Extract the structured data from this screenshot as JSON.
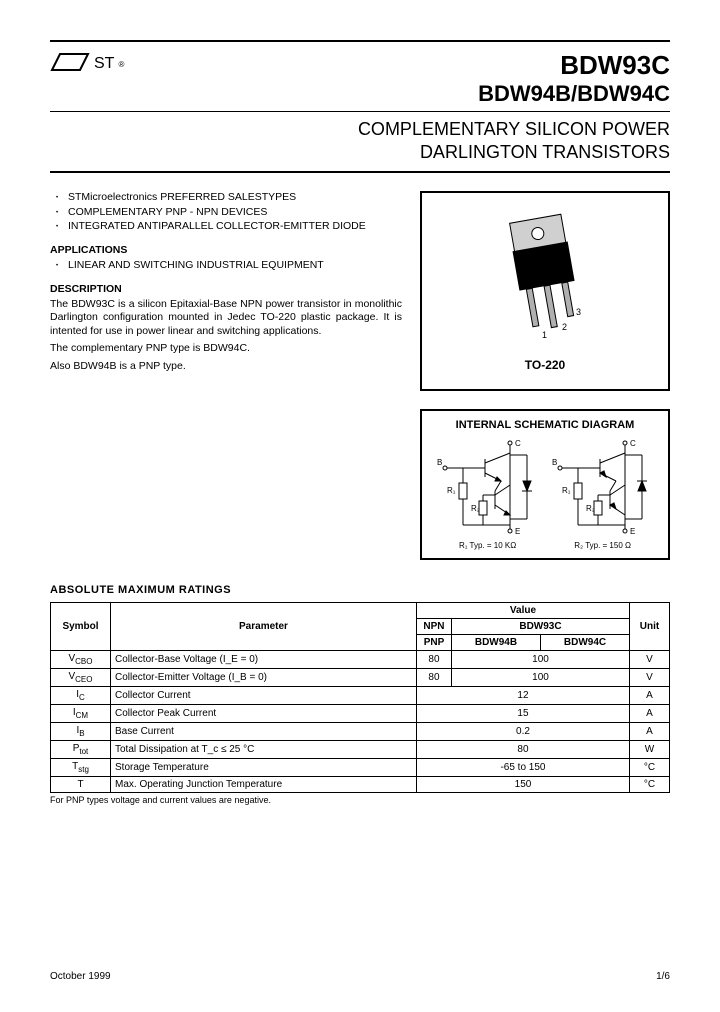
{
  "header": {
    "logo_text": "ST",
    "title_line1": "BDW93C",
    "title_line2": "BDW94B/BDW94C",
    "subtitle_line1": "COMPLEMENTARY SILICON POWER",
    "subtitle_line2": "DARLINGTON TRANSISTORS"
  },
  "features": [
    "STMicroelectronics PREFERRED SALESTYPES",
    "COMPLEMENTARY PNP - NPN DEVICES",
    "INTEGRATED ANTIPARALLEL COLLECTOR-EMITTER DIODE"
  ],
  "applications_head": "APPLICATIONS",
  "applications": [
    "LINEAR AND SWITCHING INDUSTRIAL EQUIPMENT"
  ],
  "description_head": "DESCRIPTION",
  "description_paras": [
    "The BDW93C is a silicon Epitaxial-Base NPN power transistor in monolithic Darlington configuration mounted in Jedec TO-220 plastic package. It is intented for use in power linear and switching applications.",
    "The complementary PNP type is BDW94C.",
    "Also BDW94B is a PNP type."
  ],
  "package": {
    "label": "TO-220",
    "pin1": "1",
    "pin2": "2",
    "pin3": "3",
    "body_color": "#000000",
    "tab_color": "#d0d0d0",
    "lead_color": "#b0b0b0"
  },
  "schematic": {
    "title": "INTERNAL SCHEMATIC DIAGRAM",
    "labels": {
      "B": "B",
      "C": "C",
      "E": "E",
      "R1": "R₁",
      "R2": "R₂"
    },
    "footnote_left": "R₁ Typ. = 10 KΩ",
    "footnote_right": "R₂ Typ. = 150 Ω",
    "line_color": "#000000"
  },
  "ratings": {
    "title": "ABSOLUTE MAXIMUM RATINGS",
    "headers": {
      "symbol": "Symbol",
      "parameter": "Parameter",
      "value": "Value",
      "unit": "Unit",
      "npn": "NPN",
      "pnp": "PNP"
    },
    "device_npn": "BDW93C",
    "device_pnp1": "BDW94B",
    "device_pnp2": "BDW94C",
    "rows": [
      {
        "sym": "V_CBO",
        "param": "Collector-Base Voltage (I_E = 0)",
        "v1": "80",
        "v2": "100",
        "unit": "V"
      },
      {
        "sym": "V_CEO",
        "param": "Collector-Emitter Voltage (I_B = 0)",
        "v1": "80",
        "v2": "100",
        "unit": "V"
      },
      {
        "sym": "I_C",
        "param": "Collector Current",
        "v1": "12",
        "v2": "",
        "unit": "A"
      },
      {
        "sym": "I_CM",
        "param": "Collector Peak Current",
        "v1": "15",
        "v2": "",
        "unit": "A"
      },
      {
        "sym": "I_B",
        "param": "Base Current",
        "v1": "0.2",
        "v2": "",
        "unit": "A"
      },
      {
        "sym": "P_tot",
        "param": "Total Dissipation at T_c ≤ 25 °C",
        "v1": "80",
        "v2": "",
        "unit": "W"
      },
      {
        "sym": "T_stg",
        "param": "Storage Temperature",
        "v1": "-65 to 150",
        "v2": "",
        "unit": "°C"
      },
      {
        "sym": "T",
        "param": "Max. Operating Junction Temperature",
        "v1": "150",
        "v2": "",
        "unit": "°C"
      }
    ],
    "footnote": "For PNP types voltage and current values are negative."
  },
  "footer": {
    "date": "October 1999",
    "page": "1/6"
  }
}
